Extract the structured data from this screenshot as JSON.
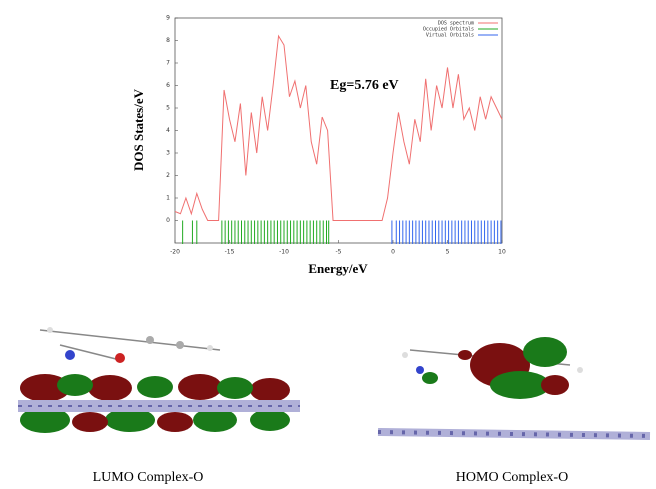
{
  "chart_data": {
    "type": "line",
    "ylabel": "DOS States/eV",
    "xlabel": "Energy/eV",
    "annotation": "Eg=5.76 eV",
    "xlim": [
      -20,
      10
    ],
    "ylim": [
      -1,
      9
    ],
    "xticks": [
      -20,
      -15,
      -10,
      -5,
      0,
      5,
      10
    ],
    "yticks": [
      0,
      1,
      2,
      3,
      4,
      5,
      6,
      7,
      8,
      9
    ],
    "x": [
      -20,
      -19.5,
      -19,
      -18.5,
      -18,
      -17.5,
      -17,
      -16.5,
      -16,
      -15.5,
      -15,
      -14.5,
      -14,
      -13.5,
      -13,
      -12.5,
      -12,
      -11.5,
      -11,
      -10.5,
      -10,
      -9.5,
      -9,
      -8.5,
      -8,
      -7.5,
      -7,
      -6.5,
      -6,
      -5.5,
      -5,
      -4.5,
      -4,
      -3.5,
      -3,
      -2.5,
      -2,
      -1.5,
      -1,
      -0.5,
      0,
      0.5,
      1,
      1.5,
      2,
      2.5,
      3,
      3.5,
      4,
      4.5,
      5,
      5.5,
      6,
      6.5,
      7,
      7.5,
      8,
      8.5,
      9,
      9.5,
      10
    ],
    "series": [
      {
        "name": "DOS spectrum",
        "color": "#f07070",
        "values": [
          0.4,
          0.3,
          1.0,
          0.3,
          1.2,
          0.5,
          0,
          0,
          0,
          5.8,
          4.5,
          3.5,
          5.2,
          2.0,
          4.8,
          3.0,
          5.5,
          4.0,
          6.0,
          8.2,
          7.8,
          5.5,
          6.2,
          5.0,
          6.0,
          3.5,
          2.5,
          4.6,
          4.0,
          0,
          0,
          0,
          0,
          0,
          0,
          0,
          0,
          0,
          0,
          1.0,
          3.0,
          4.8,
          3.5,
          2.5,
          4.5,
          3.5,
          6.3,
          4.0,
          6.0,
          5.0,
          6.8,
          5.0,
          6.5,
          4.5,
          5.0,
          4.0,
          5.5,
          4.5,
          5.5,
          5.0,
          4.5
        ]
      }
    ],
    "orbitals": [
      {
        "name": "Occupied Orbitals",
        "color": "#22aa22",
        "energies": [
          -19.3,
          -18.4,
          -18.0,
          -15.7,
          -15.4,
          -15.1,
          -14.8,
          -14.5,
          -14.2,
          -13.9,
          -13.6,
          -13.3,
          -13.0,
          -12.7,
          -12.4,
          -12.1,
          -11.8,
          -11.5,
          -11.2,
          -10.9,
          -10.6,
          -10.3,
          -10.0,
          -9.7,
          -9.4,
          -9.1,
          -8.8,
          -8.5,
          -8.2,
          -7.9,
          -7.6,
          -7.3,
          -7.0,
          -6.7,
          -6.4,
          -6.1,
          -5.9
        ]
      },
      {
        "name": "Virtual Orbitals",
        "color": "#3366ee",
        "energies": [
          -0.1,
          0.3,
          0.6,
          0.9,
          1.2,
          1.5,
          1.8,
          2.1,
          2.4,
          2.7,
          3.0,
          3.3,
          3.6,
          3.9,
          4.2,
          4.5,
          4.8,
          5.1,
          5.4,
          5.7,
          6.0,
          6.3,
          6.6,
          6.9,
          7.2,
          7.5,
          7.8,
          8.1,
          8.4,
          8.7,
          9.0,
          9.3,
          9.6,
          9.9
        ]
      }
    ],
    "captions": [
      "LUMO Complex-O",
      "HOMO Complex-O"
    ]
  }
}
